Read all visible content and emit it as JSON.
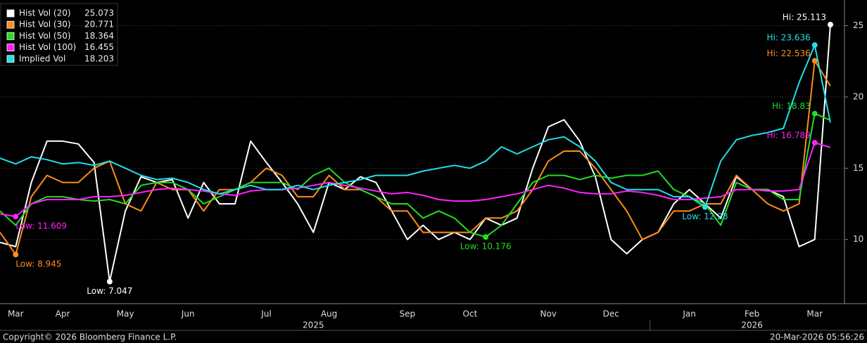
{
  "chart_data": {
    "type": "line",
    "categories": [
      null,
      "Mar",
      null,
      null,
      "Apr",
      null,
      null,
      null,
      "May",
      null,
      null,
      null,
      "Jun",
      null,
      null,
      null,
      null,
      "Jul",
      null,
      null,
      null,
      "Aug",
      null,
      null,
      null,
      null,
      "Sep",
      null,
      null,
      null,
      "Oct",
      null,
      null,
      null,
      null,
      "Nov",
      null,
      null,
      null,
      "Dec",
      null,
      null,
      null,
      null,
      "Jan",
      null,
      null,
      null,
      "Feb",
      null,
      null,
      null,
      "Mar",
      null
    ],
    "x_group_labels": [
      "2025",
      "2026"
    ],
    "series": [
      {
        "name": "Hist Vol (20)",
        "color": "#ffffff",
        "hi_label": "Hi: 25.113",
        "low_label": "Low: 7.047",
        "values": [
          9.8,
          9.5,
          14,
          16.9,
          16.9,
          16.7,
          15.4,
          7.047,
          12,
          14.4,
          14,
          14.2,
          11.5,
          14,
          12.5,
          12.5,
          16.9,
          15.4,
          14,
          12.5,
          10.5,
          14,
          13.5,
          14.4,
          14,
          12,
          10,
          11,
          10,
          10.5,
          10,
          11.5,
          11,
          11.5,
          15,
          17.9,
          18.4,
          16.9,
          14.4,
          10,
          9,
          10,
          10.5,
          12.5,
          13.5,
          12.5,
          11.5,
          14.4,
          13.5,
          13.5,
          13,
          9.5,
          10,
          25.073
        ]
      },
      {
        "name": "Hist Vol (30)",
        "color": "#ff8c1a",
        "hi_label": "Hi: 22.536",
        "low_label": "Low: 8.945",
        "values": [
          10.5,
          8.945,
          13,
          14.5,
          14,
          14,
          15,
          15.5,
          12.5,
          12,
          14,
          13.5,
          13.5,
          12,
          13.5,
          13.5,
          14,
          15,
          14.5,
          13,
          13,
          14.5,
          13.5,
          13.5,
          13,
          12,
          12,
          10.5,
          10.5,
          10.5,
          10.5,
          11.5,
          11.5,
          12,
          13.5,
          15.5,
          16.2,
          16.2,
          15,
          13.5,
          12,
          10,
          10.5,
          12,
          12,
          12.5,
          12.5,
          14.5,
          13.5,
          12.5,
          12,
          12.5,
          22.536,
          20.771
        ]
      },
      {
        "name": "Hist Vol (50)",
        "color": "#22dd22",
        "hi_label": "Hi: 18.83",
        "low_label": "Low: 10.176",
        "values": [
          12,
          11,
          12.5,
          13,
          13,
          12.8,
          12.7,
          12.8,
          12.5,
          13.8,
          14,
          14,
          13.5,
          12.5,
          13,
          13.5,
          14,
          14,
          14,
          13.5,
          14.5,
          15,
          14,
          13.5,
          13,
          12.5,
          12.5,
          11.5,
          12,
          11.5,
          10.5,
          10.176,
          11,
          12.5,
          14,
          14.5,
          14.5,
          14.2,
          14.5,
          14.3,
          14.5,
          14.5,
          14.8,
          13.5,
          13,
          12.5,
          11,
          14,
          13.5,
          13.5,
          12.8,
          12.8,
          18.83,
          18.364
        ]
      },
      {
        "name": "Hist Vol (100)",
        "color": "#ff22ff",
        "hi_label": "Hi: 16.789",
        "low_label": "Low: 11.609",
        "values": [
          11.8,
          11.609,
          12.5,
          12.8,
          12.8,
          12.8,
          13,
          13,
          13.1,
          13.3,
          13.5,
          13.6,
          13.5,
          13.4,
          13.2,
          13.1,
          13.4,
          13.5,
          13.5,
          13.6,
          13.8,
          14,
          13.8,
          13.6,
          13.4,
          13.2,
          13.3,
          13.1,
          12.8,
          12.7,
          12.7,
          12.8,
          13,
          13.2,
          13.5,
          13.8,
          13.6,
          13.3,
          13.2,
          13.2,
          13.4,
          13.3,
          13.1,
          12.8,
          12.8,
          12.9,
          13,
          13.5,
          13.5,
          13.4,
          13.4,
          13.5,
          16.789,
          16.455
        ]
      },
      {
        "name": "Implied Vol",
        "color": "#22e0e8",
        "hi_label": "Hi: 23.636",
        "low_label": "Low: 12.28",
        "values": [
          15.7,
          15.3,
          15.8,
          15.6,
          15.3,
          15.4,
          15.2,
          15.5,
          15,
          14.5,
          14.2,
          14.3,
          14,
          13.5,
          13.2,
          13.5,
          13.8,
          13.5,
          13.5,
          13.8,
          13.5,
          13.8,
          14,
          14.2,
          14.5,
          14.5,
          14.5,
          14.8,
          15,
          15.2,
          15,
          15.5,
          16.5,
          16,
          16.5,
          17,
          17.2,
          16.5,
          15.5,
          14,
          13.5,
          13.5,
          13.5,
          13,
          13,
          12.28,
          15.5,
          17,
          17.3,
          17.5,
          17.8,
          21,
          23.636,
          18.203
        ]
      }
    ],
    "ylim": [
      5.5,
      26.8
    ],
    "yticks": [
      10,
      15,
      20,
      25
    ],
    "grid": true,
    "footer": {
      "left": "Copyright© 2026 Bloomberg Finance L.P.",
      "right": "20-Mar-2026 05:56:26"
    }
  }
}
